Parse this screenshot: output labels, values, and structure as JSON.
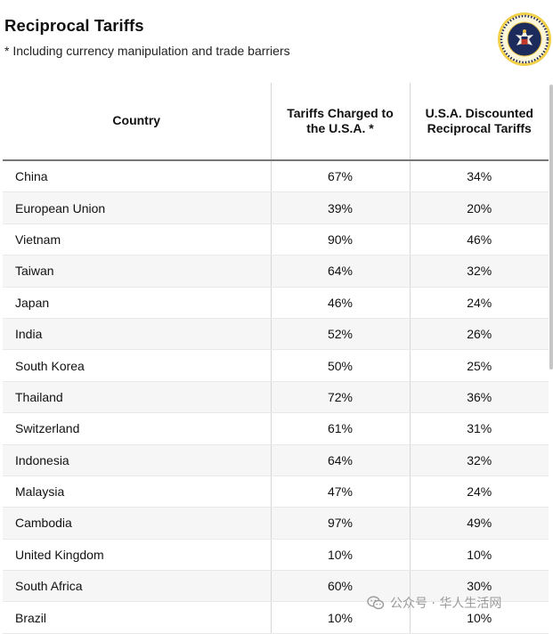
{
  "header": {
    "title": "Reciprocal Tariffs",
    "subtitle": "* Including currency manipulation and trade barriers"
  },
  "seal": {
    "icon": "presidential-seal-icon",
    "colors": {
      "ring": "#f2d04a",
      "inner": "#1c2a5c"
    }
  },
  "watermark": {
    "icon": "wechat-icon",
    "text": "公众号 · 华人生活网"
  },
  "chart_data": {
    "type": "table",
    "title": "Reciprocal Tariffs",
    "subtitle": "* Including currency manipulation and trade barriers",
    "columns": [
      "Country",
      "Tariffs Charged to the U.S.A. *",
      "U.S.A. Discounted Reciprocal Tariffs"
    ],
    "rows": [
      {
        "country": "China",
        "charged": "67%",
        "reciprocal": "34%"
      },
      {
        "country": "European Union",
        "charged": "39%",
        "reciprocal": "20%"
      },
      {
        "country": "Vietnam",
        "charged": "90%",
        "reciprocal": "46%"
      },
      {
        "country": "Taiwan",
        "charged": "64%",
        "reciprocal": "32%"
      },
      {
        "country": "Japan",
        "charged": "46%",
        "reciprocal": "24%"
      },
      {
        "country": "India",
        "charged": "52%",
        "reciprocal": "26%"
      },
      {
        "country": "South Korea",
        "charged": "50%",
        "reciprocal": "25%"
      },
      {
        "country": "Thailand",
        "charged": "72%",
        "reciprocal": "36%"
      },
      {
        "country": "Switzerland",
        "charged": "61%",
        "reciprocal": "31%"
      },
      {
        "country": "Indonesia",
        "charged": "64%",
        "reciprocal": "32%"
      },
      {
        "country": "Malaysia",
        "charged": "47%",
        "reciprocal": "24%"
      },
      {
        "country": "Cambodia",
        "charged": "97%",
        "reciprocal": "49%"
      },
      {
        "country": "United Kingdom",
        "charged": "10%",
        "reciprocal": "10%"
      },
      {
        "country": "South Africa",
        "charged": "60%",
        "reciprocal": "30%"
      },
      {
        "country": "Brazil",
        "charged": "10%",
        "reciprocal": "10%"
      }
    ]
  }
}
